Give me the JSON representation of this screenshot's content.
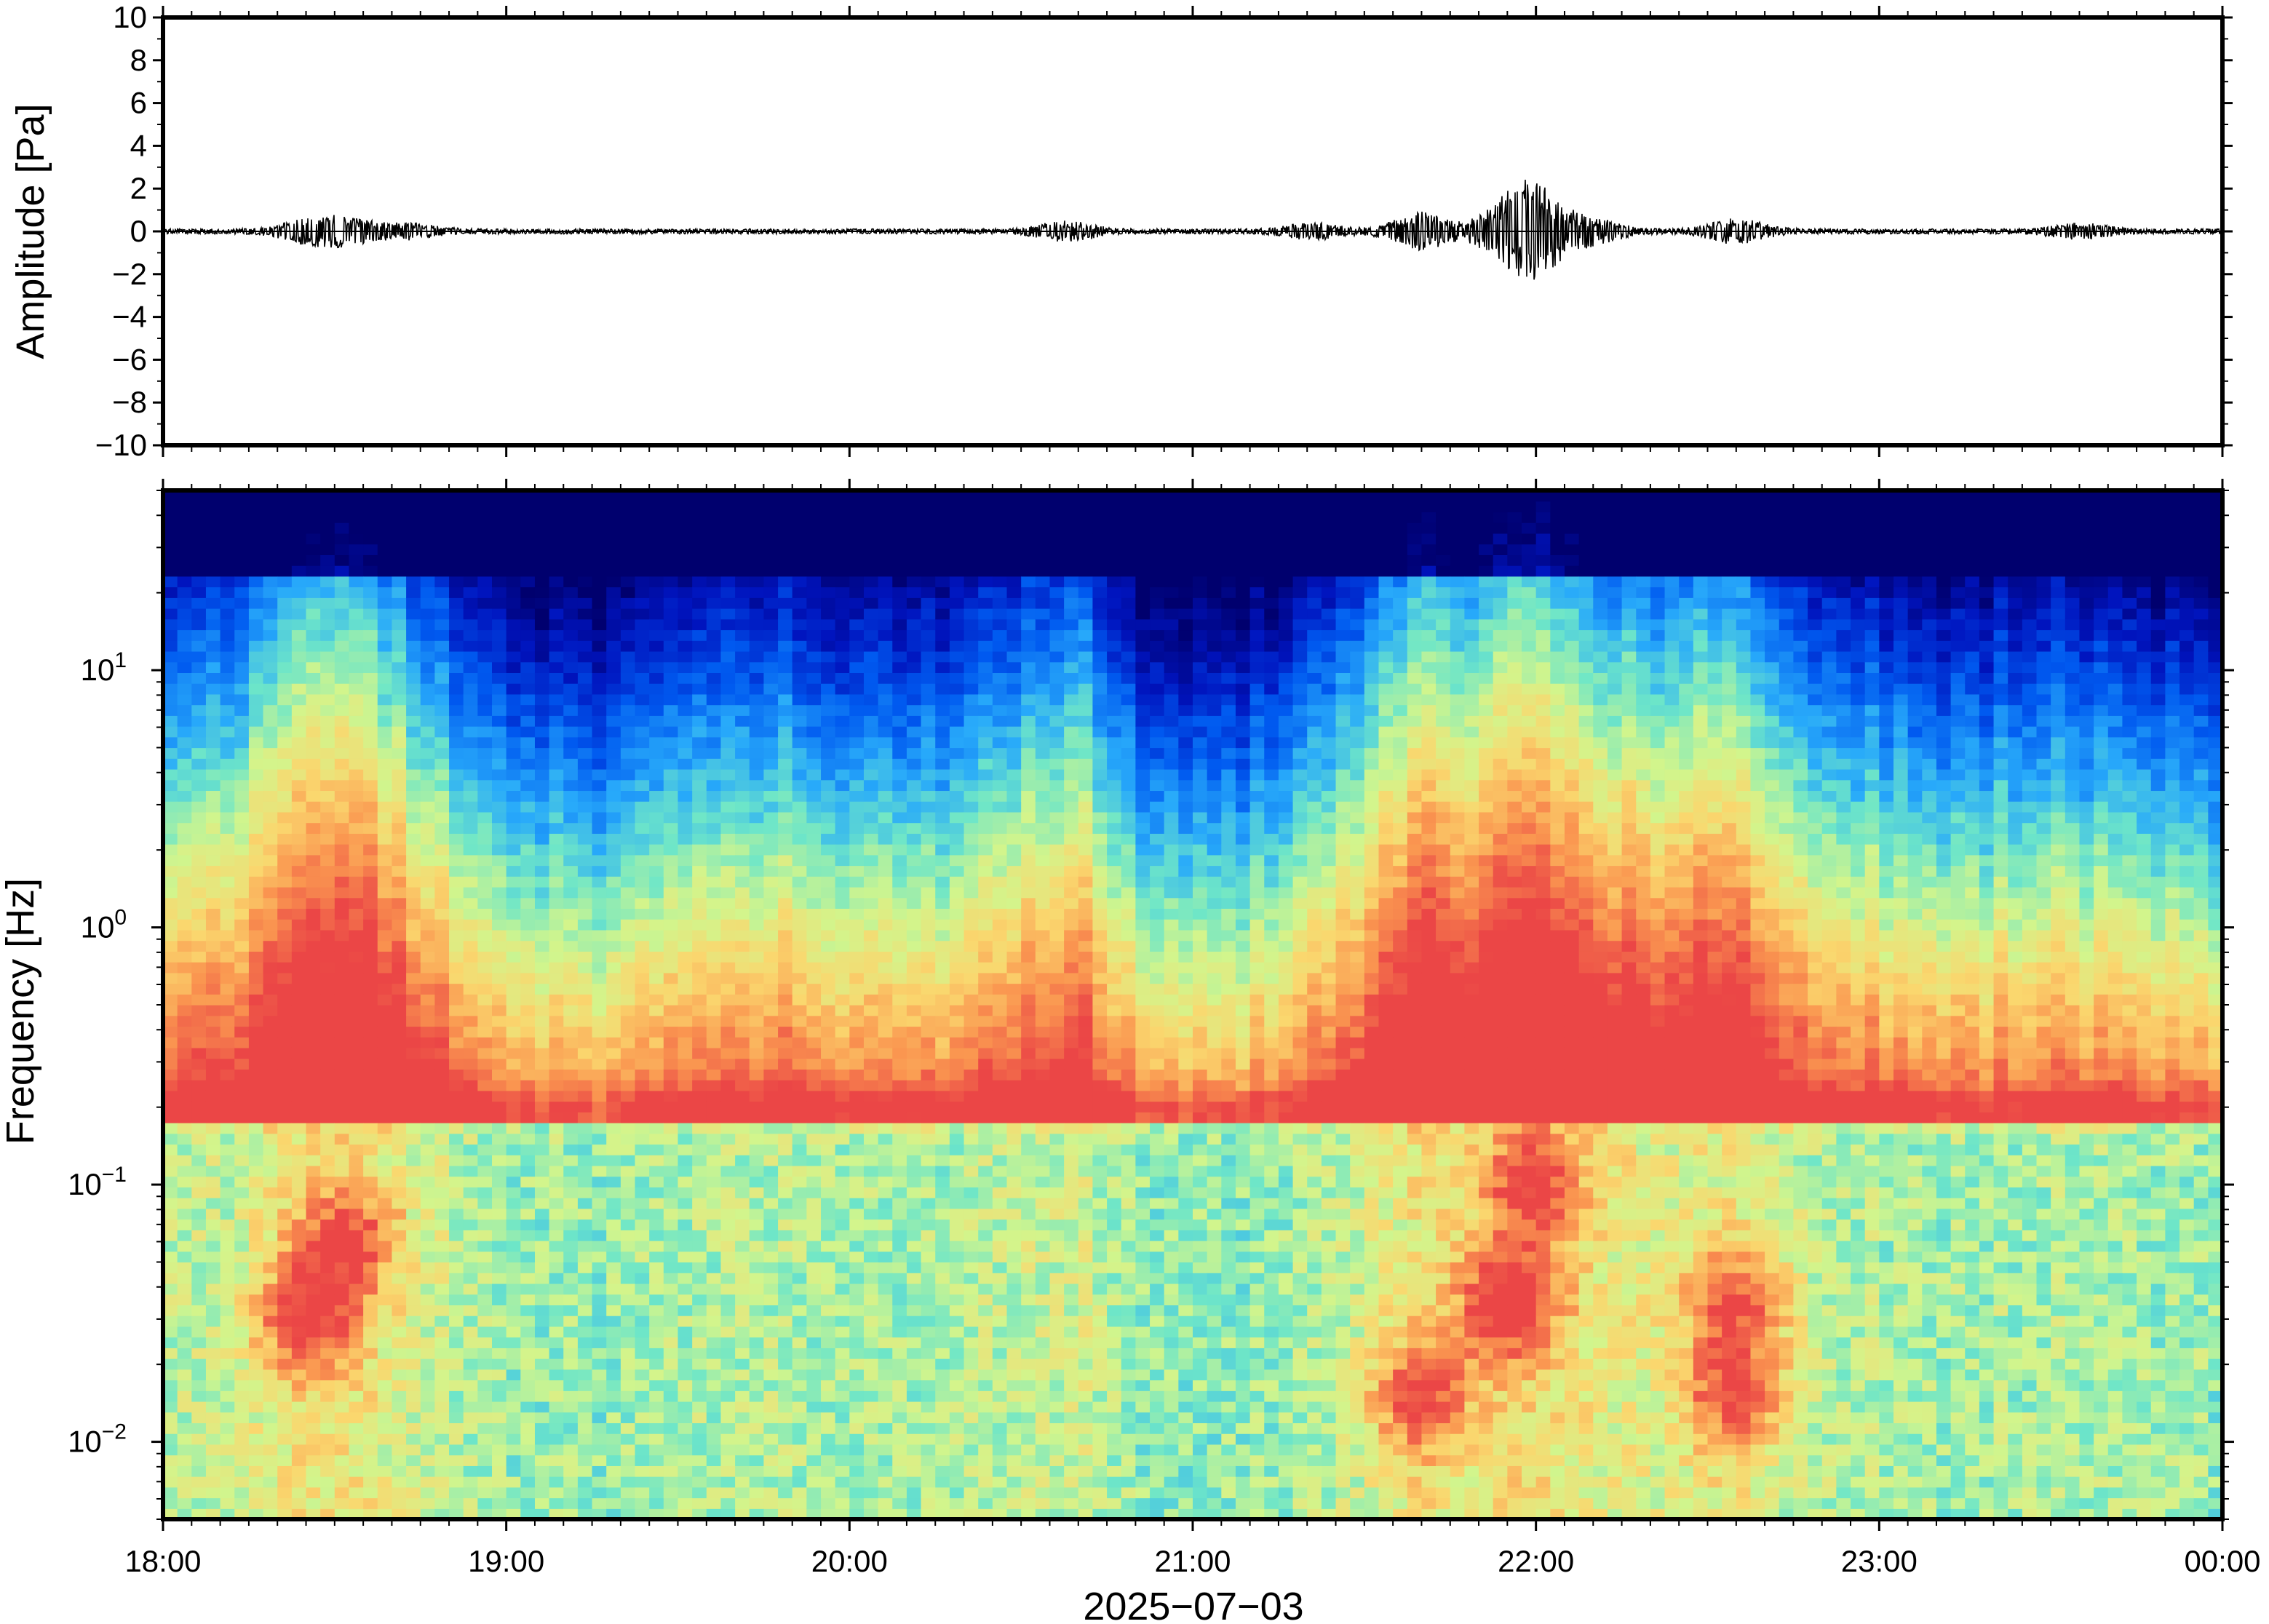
{
  "chart_data": [
    {
      "type": "line",
      "ylabel": "Amplitude [Pa]",
      "ylim": [
        -10,
        10
      ],
      "y_ticks": [
        {
          "value": 10,
          "label": "10"
        },
        {
          "value": 8,
          "label": "8"
        },
        {
          "value": 6,
          "label": "6"
        },
        {
          "value": 4,
          "label": "4"
        },
        {
          "value": 2,
          "label": "2"
        },
        {
          "value": 0,
          "label": "0"
        },
        {
          "value": -2,
          "label": "−2"
        },
        {
          "value": -4,
          "label": "−4"
        },
        {
          "value": -6,
          "label": "−6"
        },
        {
          "value": -8,
          "label": "−8"
        },
        {
          "value": -10,
          "label": "−10"
        }
      ],
      "x_time_range_hours": [
        18,
        24
      ],
      "trace_baseline": 0,
      "envelope_peaks": [
        {
          "time": "18:25",
          "amplitude": 0.4
        },
        {
          "time": "18:32",
          "amplitude": 0.5
        },
        {
          "time": "18:43",
          "amplitude": 0.3
        },
        {
          "time": "20:38",
          "amplitude": 0.4
        },
        {
          "time": "21:21",
          "amplitude": 0.3
        },
        {
          "time": "21:40",
          "amplitude": 0.8
        },
        {
          "time": "21:55",
          "amplitude": 1.0
        },
        {
          "time": "22:00",
          "amplitude": 1.7
        },
        {
          "time": "22:10",
          "amplitude": 0.5
        },
        {
          "time": "22:35",
          "amplitude": 0.5
        },
        {
          "time": "23:35",
          "amplitude": 0.3
        }
      ],
      "grid": false,
      "line_color": "#000000"
    },
    {
      "type": "heatmap",
      "ylabel": "Frequency [Hz]",
      "xlabel": "2025−07−03",
      "y_scale": "log",
      "ylim_hz": [
        0.005,
        50
      ],
      "y_ticks": [
        {
          "value": 10,
          "base": "10",
          "exp": "1"
        },
        {
          "value": 1,
          "base": "10",
          "exp": "0"
        },
        {
          "value": 0.1,
          "base": "10",
          "exp": "−1"
        },
        {
          "value": 0.01,
          "base": "10",
          "exp": "−2"
        }
      ],
      "x_ticks": [
        "18:00",
        "19:00",
        "20:00",
        "21:00",
        "22:00",
        "23:00",
        "00:00"
      ],
      "colormap": "jet-like (dark blue = low power, red = high power)",
      "activity_by_time": [
        {
          "time": "18:00",
          "level": 0.45
        },
        {
          "time": "18:15",
          "level": 0.6
        },
        {
          "time": "18:25",
          "level": 0.9
        },
        {
          "time": "18:35",
          "level": 0.85
        },
        {
          "time": "18:45",
          "level": 0.6
        },
        {
          "time": "19:00",
          "level": 0.3
        },
        {
          "time": "19:15",
          "level": 0.25
        },
        {
          "time": "19:30",
          "level": 0.35
        },
        {
          "time": "19:45",
          "level": 0.45
        },
        {
          "time": "20:00",
          "level": 0.35
        },
        {
          "time": "20:15",
          "level": 0.35
        },
        {
          "time": "20:30",
          "level": 0.5
        },
        {
          "time": "20:40",
          "level": 0.6
        },
        {
          "time": "20:50",
          "level": 0.3
        },
        {
          "time": "21:00",
          "level": 0.2
        },
        {
          "time": "21:15",
          "level": 0.3
        },
        {
          "time": "21:30",
          "level": 0.6
        },
        {
          "time": "21:40",
          "level": 0.85
        },
        {
          "time": "21:50",
          "level": 0.8
        },
        {
          "time": "21:55",
          "level": 1.0
        },
        {
          "time": "22:05",
          "level": 0.85
        },
        {
          "time": "22:20",
          "level": 0.7
        },
        {
          "time": "22:35",
          "level": 0.75
        },
        {
          "time": "22:50",
          "level": 0.45
        },
        {
          "time": "23:00",
          "level": 0.4
        },
        {
          "time": "23:15",
          "level": 0.35
        },
        {
          "time": "23:30",
          "level": 0.4
        },
        {
          "time": "23:45",
          "level": 0.35
        },
        {
          "time": "24:00",
          "level": 0.3
        }
      ],
      "hot_spots": [
        {
          "time": "18:25",
          "freq_hz": 0.03,
          "intensity": 0.85
        },
        {
          "time": "18:32",
          "freq_hz": 0.06,
          "intensity": 0.8
        },
        {
          "time": "21:40",
          "freq_hz": 0.015,
          "intensity": 0.8
        },
        {
          "time": "21:55",
          "freq_hz": 0.035,
          "intensity": 1.0
        },
        {
          "time": "22:00",
          "freq_hz": 0.1,
          "intensity": 0.85
        },
        {
          "time": "22:35",
          "freq_hz": 0.015,
          "intensity": 0.8
        },
        {
          "time": "22:35",
          "freq_hz": 0.035,
          "intensity": 0.75
        }
      ],
      "grid": false
    }
  ]
}
